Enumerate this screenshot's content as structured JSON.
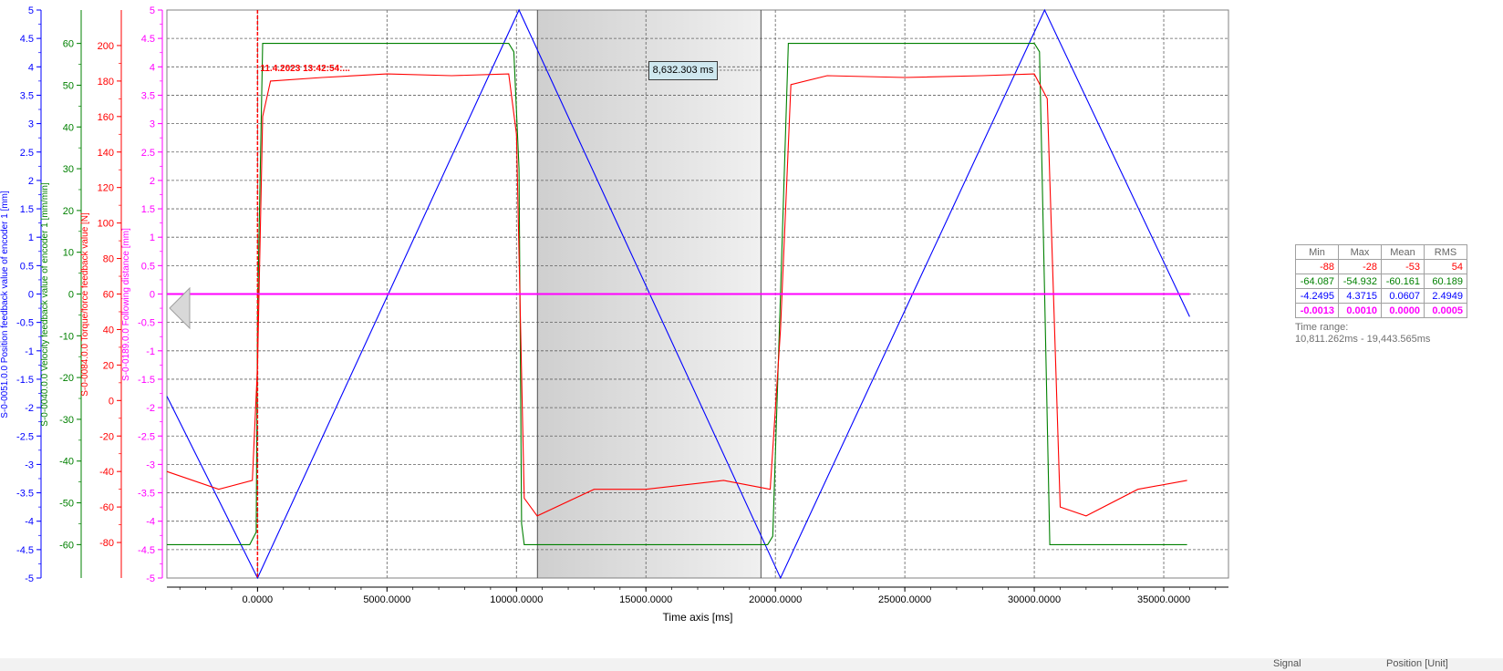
{
  "chart_data": {
    "type": "line",
    "xlabel": "Time axis [ms]",
    "xlim": [
      -3500,
      37500
    ],
    "x_ticks": [
      0,
      5000,
      10000,
      15000,
      20000,
      25000,
      30000,
      35000
    ],
    "x_tick_labels": [
      "0.0000",
      "5000.0000",
      "10000.0000",
      "15000.0000",
      "20000.0000",
      "25000.0000",
      "30000.0000",
      "35000.0000"
    ],
    "grid": true,
    "axes": [
      {
        "id": "pos",
        "label": "S-0-0051.0.0 Position feedback value of encoder 1 [mm]",
        "color": "#0000ff",
        "range": [
          -5,
          5
        ],
        "ticks": [
          -5,
          -4.5,
          -4,
          -3.5,
          -3,
          -2.5,
          -2,
          -1.5,
          -1,
          -0.5,
          0,
          0.5,
          1,
          1.5,
          2,
          2.5,
          3,
          3.5,
          4,
          4.5,
          5
        ]
      },
      {
        "id": "vel",
        "label": "S-0-0040.0.0 Velocity feedback value of encoder 1 [mm/min]",
        "color": "#008000",
        "range": [
          -68,
          68
        ],
        "ticks": [
          -60,
          -50,
          -40,
          -30,
          -20,
          -10,
          0,
          10,
          20,
          30,
          40,
          50,
          60
        ]
      },
      {
        "id": "force",
        "label": "S-0-0084.0.0 Torque/force feedback value [N]",
        "color": "#ff0000",
        "range": [
          -100,
          220
        ],
        "ticks": [
          -80,
          -60,
          -40,
          -20,
          0,
          20,
          40,
          60,
          80,
          100,
          120,
          140,
          160,
          180,
          200
        ]
      },
      {
        "id": "follow",
        "label": "S-0-0189.0.0 Following distance [mm]",
        "color": "#ff00ff",
        "range": [
          -5,
          5
        ],
        "ticks": [
          -5,
          -4.5,
          -4,
          -3.5,
          -3,
          -2.5,
          -2,
          -1.5,
          -1,
          -0.5,
          0,
          0.5,
          1,
          1.5,
          2,
          2.5,
          3,
          3.5,
          4,
          4.5,
          5
        ]
      }
    ],
    "series": [
      {
        "name": "S-0-0051.0.0 Position feedback value of encoder 1 [mm]",
        "axis": "pos",
        "color": "#0000ff",
        "x": [
          -3500,
          0,
          10100,
          20200,
          30400,
          36000
        ],
        "y": [
          -1.8,
          -5,
          5,
          -5,
          5,
          -0.4
        ]
      },
      {
        "name": "S-0-0040.0.0 Velocity feedback value of encoder 1 [mm/min]",
        "axis": "vel",
        "color": "#008000",
        "x": [
          -3500,
          -300,
          -50,
          0,
          200,
          9700,
          9900,
          10100,
          10200,
          10300,
          19300,
          19700,
          19900,
          20200,
          20500,
          29800,
          30000,
          30200,
          30400,
          30600,
          35900
        ],
        "y": [
          -60,
          -60,
          -57,
          -5,
          60,
          60,
          58,
          30,
          -55,
          -60,
          -60,
          -60,
          -58,
          0,
          60,
          60,
          60,
          58,
          0,
          -60,
          -60
        ]
      },
      {
        "name": "S-0-0084.0.0 Torque/force feedback value [N]",
        "axis": "force",
        "color": "#ff0000",
        "x": [
          -3500,
          -1500,
          -200,
          0,
          200,
          500,
          2500,
          5000,
          7500,
          9700,
          10000,
          10300,
          10800,
          13000,
          15000,
          18000,
          19800,
          20200,
          20600,
          22000,
          25000,
          28000,
          30000,
          30500,
          31000,
          32000,
          34000,
          35900
        ],
        "y": [
          -40,
          -50,
          -45,
          20,
          160,
          180,
          182,
          184,
          183,
          184,
          150,
          -55,
          -65,
          -50,
          -50,
          -45,
          -50,
          40,
          178,
          183,
          182,
          183,
          184,
          170,
          -60,
          -65,
          -50,
          -45
        ]
      },
      {
        "name": "S-0-0189.0.0 Following distance [mm]",
        "axis": "follow",
        "color": "#ff00ff",
        "x": [
          -3500,
          0,
          10000,
          20000,
          30000,
          36000
        ],
        "y": [
          0.0,
          0.0,
          0.0,
          0.0,
          0.0,
          0.0
        ]
      }
    ],
    "selection": {
      "x_start": 10811.262,
      "x_end": 19443.565
    },
    "cursor_x": 0,
    "delta_label": "8,632.303 ms",
    "cursor_timestamp_label": "11.4.2023 13:42:54:..."
  },
  "stats_table": {
    "headers": [
      "Min",
      "Max",
      "Mean",
      "RMS"
    ],
    "rows": [
      {
        "color": "#ff0000",
        "bold": false,
        "values": [
          "-88",
          "-28",
          "-53",
          "54"
        ]
      },
      {
        "color": "#008000",
        "bold": false,
        "values": [
          "-64.087",
          "-54.932",
          "-60.161",
          "60.189"
        ]
      },
      {
        "color": "#0000ff",
        "bold": false,
        "values": [
          "-4.2495",
          "4.3715",
          "0.0607",
          "2.4949"
        ]
      },
      {
        "color": "#ff00ff",
        "bold": true,
        "values": [
          "-0.0013",
          "0.0010",
          "0.0000",
          "0.0005"
        ]
      }
    ]
  },
  "time_range": {
    "label": "Time range:",
    "value": "10,811.262ms - 19,443.565ms"
  },
  "bottom_bar": {
    "signal_label": "Signal",
    "position_label": "Position [Unit]"
  }
}
